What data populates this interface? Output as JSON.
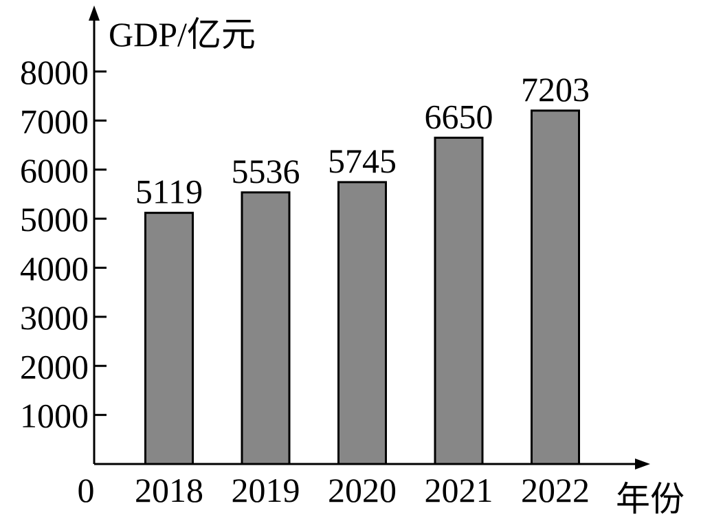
{
  "chart_data": {
    "type": "bar",
    "ylabel": "GDP/亿元",
    "xlabel": "年份",
    "origin_label": "0",
    "categories": [
      "2018",
      "2019",
      "2020",
      "2021",
      "2022"
    ],
    "values": [
      5119,
      5536,
      5745,
      6650,
      7203
    ],
    "data_labels": [
      "5119",
      "5536",
      "5745",
      "6650",
      "7203"
    ],
    "y_ticks": [
      1000,
      2000,
      3000,
      4000,
      5000,
      6000,
      7000,
      8000
    ],
    "y_tick_labels": [
      "1000",
      "2000",
      "3000",
      "4000",
      "5000",
      "6000",
      "7000",
      "8000"
    ],
    "ylim": [
      0,
      8000
    ],
    "grid": false,
    "legend": "none",
    "bar_color": "#878787",
    "edge_color": "#000000"
  }
}
